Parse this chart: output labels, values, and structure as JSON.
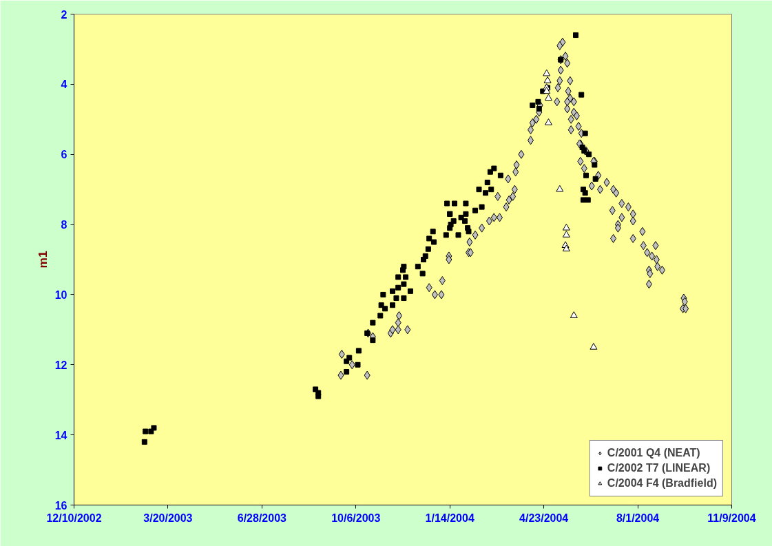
{
  "chart_data": {
    "type": "scatter",
    "ylabel": "m1",
    "legend": "bottom right",
    "grid": false,
    "xlim": [
      "2002-12-10",
      "2004-11-09"
    ],
    "xticks": [
      {
        "value": "2002-12-10",
        "label": "12/10/2002"
      },
      {
        "value": "2003-03-20",
        "label": "3/20/2003"
      },
      {
        "value": "2003-06-28",
        "label": "6/28/2003"
      },
      {
        "value": "2003-10-06",
        "label": "10/6/2003"
      },
      {
        "value": "2004-01-14",
        "label": "1/14/2004"
      },
      {
        "value": "2004-04-23",
        "label": "4/23/2004"
      },
      {
        "value": "2004-08-01",
        "label": "8/1/2004"
      },
      {
        "value": "2004-11-09",
        "label": "11/9/2004"
      }
    ],
    "ylim": [
      16,
      2
    ],
    "yticks": [
      2,
      4,
      6,
      8,
      10,
      12,
      14,
      16
    ],
    "series": [
      {
        "name": "C/2001 Q4 (NEAT)",
        "color": "#c0c0c0",
        "marker": "diamond",
        "x": [
          "2003-09-21",
          "2003-09-20",
          "2003-10-02",
          "2003-10-18",
          "2003-10-19",
          "2003-10-24",
          "2003-11-12",
          "2003-11-21",
          "2003-11-20",
          "2003-11-14",
          "2003-11-20",
          "2003-11-30",
          "2003-12-23",
          "2003-12-29",
          "2004-01-05",
          "2004-01-06",
          "2004-01-13",
          "2004-01-13",
          "2004-02-03",
          "2004-02-05",
          "2004-02-04",
          "2004-02-10",
          "2004-02-17",
          "2004-02-25",
          "2004-03-01",
          "2004-03-07",
          "2004-03-05",
          "2004-03-14",
          "2004-03-17",
          "2004-03-21",
          "2004-03-16",
          "2004-03-23",
          "2004-03-25",
          "2004-03-24",
          "2004-03-30",
          "2004-04-09",
          "2004-04-09",
          "2004-04-11",
          "2004-04-15",
          "2004-04-18",
          "2004-04-19",
          "2004-05-07",
          "2004-05-08",
          "2004-05-10",
          "2004-05-11",
          "2004-05-11",
          "2004-05-13",
          "2004-05-10",
          "2004-05-16",
          "2004-05-18",
          "2004-05-21",
          "2004-05-19",
          "2004-05-21",
          "2004-05-18",
          "2004-05-18",
          "2004-05-25",
          "2004-05-25",
          "2004-05-28",
          "2004-05-22",
          "2004-05-22",
          "2004-05-30",
          "2004-06-02",
          "2004-06-01",
          "2004-06-06",
          "2004-06-01",
          "2004-06-05",
          "2004-06-16",
          "2004-06-20",
          "2004-06-13",
          "2004-06-22",
          "2004-05-31",
          "2004-06-07",
          "2004-06-15",
          "2004-06-29",
          "2004-07-06",
          "2004-07-09",
          "2004-07-05",
          "2004-07-15",
          "2004-07-22",
          "2004-07-27",
          "2004-07-15",
          "2004-07-27",
          "2004-07-11",
          "2004-07-11",
          "2004-07-06",
          "2004-08-06",
          "2004-07-27",
          "2004-08-07",
          "2004-08-20",
          "2004-08-11",
          "2004-08-16",
          "2004-08-21",
          "2004-08-13",
          "2004-08-14",
          "2004-08-22",
          "2004-08-27",
          "2004-08-13",
          "2004-09-19",
          "2004-09-20",
          "2004-09-18",
          "2004-09-21"
        ],
        "values": [
          11.7,
          12.3,
          12.0,
          12.3,
          11.1,
          11.2,
          11.1,
          10.6,
          10.8,
          11.0,
          11.0,
          11.0,
          9.8,
          10.0,
          10.0,
          9.6,
          8.9,
          9.0,
          8.8,
          8.8,
          8.5,
          8.3,
          8.1,
          7.9,
          7.8,
          7.8,
          7.2,
          7.5,
          7.3,
          7.2,
          6.7,
          7.0,
          6.3,
          6.5,
          6.0,
          5.6,
          5.3,
          5.1,
          5.0,
          4.8,
          4.6,
          4.5,
          4.1,
          3.9,
          3.6,
          3.3,
          2.8,
          2.9,
          3.2,
          3.4,
          3.9,
          4.2,
          4.4,
          4.5,
          4.7,
          4.5,
          4.8,
          4.9,
          5.0,
          5.3,
          5.2,
          5.4,
          5.7,
          5.9,
          6.2,
          6.4,
          6.2,
          6.6,
          6.9,
          7.0,
          5.7,
          5.9,
          6.2,
          6.8,
          7.0,
          7.1,
          7.6,
          7.4,
          7.5,
          7.7,
          7.8,
          7.9,
          8.0,
          8.1,
          8.4,
          8.2,
          8.4,
          8.6,
          8.6,
          8.8,
          8.9,
          9.0,
          9.3,
          9.4,
          9.2,
          9.3,
          9.7,
          10.1,
          10.2,
          10.4,
          10.4
        ]
      },
      {
        "name": "C/2002 T7 (LINEAR)",
        "color": "#000000",
        "marker": "square",
        "x": [
          "2003-02-24",
          "2003-03-02",
          "2003-03-05",
          "2003-02-23",
          "2003-08-24",
          "2003-08-27",
          "2003-08-27",
          "2003-10-09",
          "2003-09-29",
          "2003-09-26",
          "2003-10-08",
          "2003-09-26",
          "2003-10-18",
          "2003-10-24",
          "2003-10-24",
          "2003-11-01",
          "2003-11-06",
          "2003-11-02",
          "2003-11-14",
          "2003-11-04",
          "2003-11-18",
          "2003-11-26",
          "2003-11-14",
          "2003-11-20",
          "2003-12-03",
          "2003-11-26",
          "2003-11-20",
          "2003-11-28",
          "2003-11-25",
          "2003-11-26",
          "2003-12-11",
          "2003-12-16",
          "2003-12-17",
          "2003-12-19",
          "2003-12-22",
          "2003-12-28",
          "2003-12-23",
          "2003-12-27",
          "2004-01-10",
          "2004-01-23",
          "2004-01-14",
          "2004-01-18",
          "2004-01-14",
          "2004-02-03",
          "2004-01-31",
          "2004-02-17",
          "2004-03-01",
          "2004-02-26",
          "2004-03-08",
          "2004-02-23",
          "2004-02-21",
          "2004-02-14",
          "2004-02-27",
          "2004-01-11",
          "2004-01-19",
          "2004-01-31",
          "2004-01-14",
          "2004-01-26",
          "2004-01-30",
          "2004-02-10",
          "2004-01-15",
          "2004-02-02",
          "2004-05-27",
          "2004-06-02",
          "2004-05-11",
          "2004-04-17",
          "2004-04-11",
          "2004-04-18",
          "2004-04-22",
          "2004-04-27",
          "2004-06-06",
          "2004-06-03",
          "2004-06-05",
          "2004-06-10",
          "2004-06-16",
          "2004-06-17",
          "2004-06-07",
          "2004-06-04",
          "2004-06-06",
          "2004-06-04",
          "2004-06-09"
        ],
        "values": [
          13.9,
          13.9,
          13.8,
          14.2,
          12.7,
          12.8,
          12.9,
          11.6,
          11.8,
          11.9,
          12.0,
          12.2,
          11.1,
          11.3,
          10.8,
          10.6,
          10.4,
          10.3,
          10.3,
          10.0,
          10.1,
          10.1,
          9.9,
          9.8,
          9.9,
          9.7,
          9.5,
          9.5,
          9.3,
          9.2,
          9.2,
          9.4,
          9.0,
          8.9,
          8.7,
          8.5,
          8.4,
          8.2,
          8.3,
          8.3,
          8.1,
          7.9,
          7.7,
          8.2,
          7.7,
          7.5,
          6.4,
          6.5,
          6.6,
          6.8,
          7.1,
          7.0,
          7.0,
          7.4,
          7.4,
          7.4,
          7.7,
          7.8,
          7.9,
          7.6,
          8.0,
          8.1,
          2.6,
          4.3,
          3.3,
          4.5,
          4.6,
          4.7,
          4.2,
          4.1,
          5.4,
          5.8,
          5.9,
          6.0,
          6.3,
          6.7,
          6.6,
          7.0,
          7.1,
          7.3,
          7.3
        ]
      },
      {
        "name": "C/2004 F4 (Bradfield)",
        "color": "#ffffff",
        "marker": "triangle",
        "x": [
          "2004-04-26",
          "2004-04-27",
          "2004-04-26",
          "2004-04-26",
          "2004-04-28",
          "2004-04-28",
          "2004-05-10",
          "2004-05-17",
          "2004-05-17",
          "2004-05-16",
          "2004-05-17",
          "2004-05-25",
          "2004-06-15"
        ],
        "values": [
          3.7,
          3.9,
          4.1,
          4.2,
          4.4,
          5.1,
          7.0,
          8.1,
          8.3,
          8.6,
          8.7,
          10.6,
          11.5
        ]
      }
    ]
  }
}
